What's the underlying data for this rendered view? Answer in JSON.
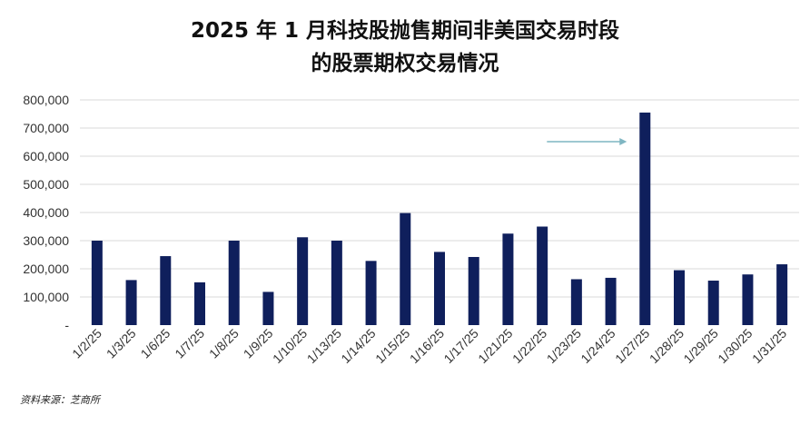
{
  "title_line1": "2025 年 1 月科技股抛售期间非美国交易时段",
  "title_line2": "的股票期权交易情况",
  "source": "资料来源：芝商所",
  "colors": {
    "bar": "#0f1f5c",
    "grid": "#d9d9d9",
    "arrow": "#7fb6c2"
  },
  "chart_data": {
    "type": "bar",
    "title": "2025 年 1 月科技股抛售期间非美国交易时段的股票期权交易情况",
    "categories": [
      "1/2/25",
      "1/3/25",
      "1/6/25",
      "1/7/25",
      "1/8/25",
      "1/9/25",
      "1/10/25",
      "1/13/25",
      "1/14/25",
      "1/15/25",
      "1/16/25",
      "1/17/25",
      "1/21/25",
      "1/22/25",
      "1/23/25",
      "1/24/25",
      "1/27/25",
      "1/28/25",
      "1/29/25",
      "1/30/25",
      "1/31/25"
    ],
    "values": [
      300000,
      160000,
      245000,
      152000,
      300000,
      118000,
      312000,
      300000,
      228000,
      398000,
      260000,
      242000,
      325000,
      350000,
      163000,
      168000,
      755000,
      195000,
      158000,
      180000,
      216000
    ],
    "ylim": [
      0,
      800000
    ],
    "yticks": [
      "-",
      "100,000",
      "200,000",
      "300,000",
      "400,000",
      "500,000",
      "600,000",
      "700,000",
      "800,000"
    ],
    "ytick_values": [
      0,
      100000,
      200000,
      300000,
      400000,
      500000,
      600000,
      700000,
      800000
    ],
    "grid": true,
    "annotation": {
      "type": "arrow",
      "points_to": "1/27/25"
    }
  }
}
